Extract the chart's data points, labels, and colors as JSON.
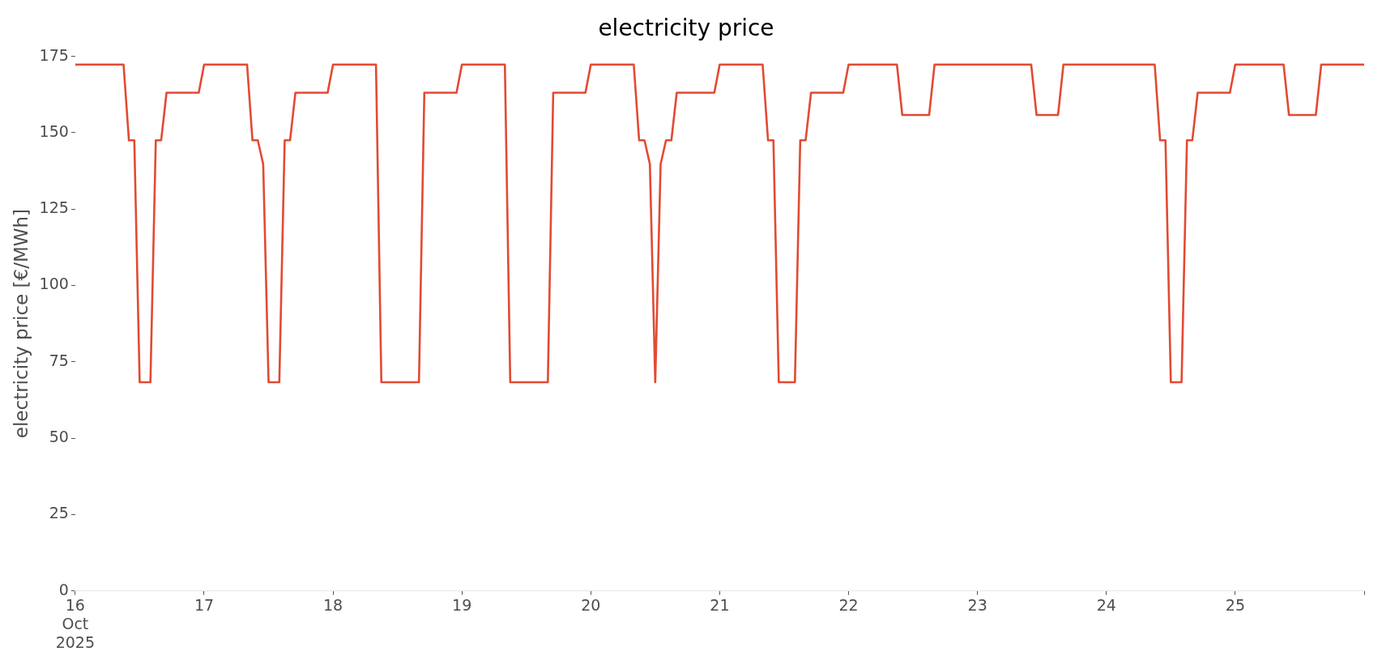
{
  "chart_data": {
    "type": "line",
    "title": "electricity price",
    "ylabel": "electricity price [€/MWh]",
    "x": [
      "2025-10-16T00:00",
      "2025-10-16T09:00",
      "2025-10-16T10:00",
      "2025-10-16T11:00",
      "2025-10-16T12:00",
      "2025-10-16T14:00",
      "2025-10-16T15:00",
      "2025-10-16T16:00",
      "2025-10-16T17:00",
      "2025-10-16T23:00",
      "2025-10-17T00:00",
      "2025-10-17T08:00",
      "2025-10-17T09:00",
      "2025-10-17T10:00",
      "2025-10-17T11:00",
      "2025-10-17T12:00",
      "2025-10-17T14:00",
      "2025-10-17T15:00",
      "2025-10-17T16:00",
      "2025-10-17T17:00",
      "2025-10-17T23:00",
      "2025-10-18T00:00",
      "2025-10-18T08:00",
      "2025-10-18T09:00",
      "2025-10-18T16:00",
      "2025-10-18T17:00",
      "2025-10-18T23:00",
      "2025-10-19T00:00",
      "2025-10-19T08:00",
      "2025-10-19T09:00",
      "2025-10-19T16:00",
      "2025-10-19T17:00",
      "2025-10-19T23:00",
      "2025-10-20T00:00",
      "2025-10-20T08:00",
      "2025-10-20T09:00",
      "2025-10-20T10:00",
      "2025-10-20T11:00",
      "2025-10-20T12:00",
      "2025-10-20T13:00",
      "2025-10-20T14:00",
      "2025-10-20T15:00",
      "2025-10-20T16:00",
      "2025-10-20T23:00",
      "2025-10-21T00:00",
      "2025-10-21T08:00",
      "2025-10-21T09:00",
      "2025-10-21T10:00",
      "2025-10-21T11:00",
      "2025-10-21T14:00",
      "2025-10-21T15:00",
      "2025-10-21T16:00",
      "2025-10-21T17:00",
      "2025-10-21T23:00",
      "2025-10-22T00:00",
      "2025-10-22T09:00",
      "2025-10-22T10:00",
      "2025-10-22T15:00",
      "2025-10-22T16:00",
      "2025-10-23T10:00",
      "2025-10-23T11:00",
      "2025-10-23T15:00",
      "2025-10-23T16:00",
      "2025-10-24T09:00",
      "2025-10-24T10:00",
      "2025-10-24T11:00",
      "2025-10-24T12:00",
      "2025-10-24T14:00",
      "2025-10-24T15:00",
      "2025-10-24T16:00",
      "2025-10-24T17:00",
      "2025-10-24T23:00",
      "2025-10-25T00:00",
      "2025-10-25T09:00",
      "2025-10-25T10:00",
      "2025-10-25T15:00",
      "2025-10-25T16:00",
      "2025-10-26T00:00"
    ],
    "series": [
      {
        "color": "#e24a33",
        "values": [
          172.3,
          172.3,
          147.5,
          147.5,
          68.3,
          68.3,
          147.5,
          147.5,
          163.1,
          163.1,
          172.3,
          172.3,
          147.5,
          147.5,
          139.7,
          68.3,
          68.3,
          147.5,
          147.5,
          163.1,
          163.1,
          172.3,
          172.3,
          68.3,
          68.3,
          163.1,
          163.1,
          172.3,
          172.3,
          68.3,
          68.3,
          163.1,
          163.1,
          172.3,
          172.3,
          147.5,
          147.5,
          139.7,
          68.3,
          139.7,
          147.5,
          147.5,
          163.1,
          163.1,
          172.3,
          172.3,
          147.5,
          147.5,
          68.3,
          68.3,
          147.5,
          147.5,
          163.1,
          163.1,
          172.3,
          172.3,
          155.8,
          155.8,
          172.3,
          172.3,
          155.8,
          155.8,
          172.3,
          172.3,
          147.5,
          147.5,
          68.3,
          68.3,
          147.5,
          147.5,
          163.1,
          163.1,
          172.3,
          172.3,
          155.8,
          155.8,
          172.3,
          172.3
        ]
      }
    ],
    "xlim": [
      "2025-10-16T00:00",
      "2025-10-26T00:00"
    ],
    "xticks": [
      {
        "value": "2025-10-16",
        "label": "16\nOct\n2025"
      },
      {
        "value": "2025-10-17",
        "label": "17"
      },
      {
        "value": "2025-10-18",
        "label": "18"
      },
      {
        "value": "2025-10-19",
        "label": "19"
      },
      {
        "value": "2025-10-20",
        "label": "20"
      },
      {
        "value": "2025-10-21",
        "label": "21"
      },
      {
        "value": "2025-10-22",
        "label": "22"
      },
      {
        "value": "2025-10-23",
        "label": "23"
      },
      {
        "value": "2025-10-24",
        "label": "24"
      },
      {
        "value": "2025-10-25",
        "label": "25"
      },
      {
        "value": "2025-10-26",
        "label": null
      }
    ],
    "ylim": [
      0,
      175
    ],
    "yticks": [
      0,
      25,
      50,
      75,
      100,
      125,
      150,
      175
    ],
    "grid": false,
    "legend": false
  }
}
